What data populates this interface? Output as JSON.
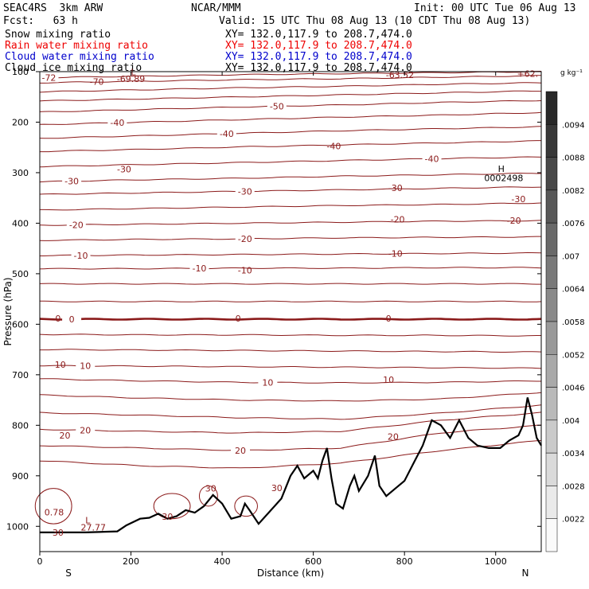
{
  "header": {
    "model": "SEAC4RS  3km ARW",
    "org": "NCAR/MMM",
    "init": "Init: 00 UTC Tue 06 Aug 13",
    "fcst": "Fcst:   63 h",
    "valid": "Valid: 15 UTC Thu 08 Aug 13 (10 CDT Thu 08 Aug 13)",
    "fields": [
      {
        "name": "Snow mixing ratio",
        "xy": "XY= 132.0,117.9 to 208.7,474.0",
        "color": "#000000"
      },
      {
        "name": "Rain water mixing ratio",
        "xy": "XY= 132.0,117.9 to 208.7,474.0",
        "color": "#ff0000"
      },
      {
        "name": "Cloud water mixing ratio",
        "xy": "XY= 132.0,117.9 to 208.7,474.0",
        "color": "#0000cc"
      },
      {
        "name": "Cloud ice mixing ratio",
        "xy": "XY= 132.0,117.9 to 208.7,474.0",
        "color": "#000000"
      }
    ]
  },
  "chart_data": {
    "type": "contour",
    "xlabel": "Distance (km)",
    "ylabel": "Pressure (hPa)",
    "xlim": [
      0,
      1100
    ],
    "ylim": [
      1050,
      100
    ],
    "x_ticks": [
      0,
      200,
      400,
      600,
      800,
      1000
    ],
    "y_ticks": [
      100,
      200,
      300,
      400,
      500,
      600,
      700,
      800,
      900,
      1000
    ],
    "x_end_labels": {
      "left": "S",
      "right": "N"
    },
    "contour_color": "#8b1a1a",
    "isotherm_levels": [
      {
        "p": [
          112,
          109,
          106,
          104,
          102,
          100
        ],
        "label": "-72",
        "lx": 20
      },
      {
        "p": [
          122,
          119,
          116,
          114,
          111,
          108
        ]
      },
      {
        "p": [
          140,
          136,
          132,
          129,
          125,
          122
        ]
      },
      {
        "p": [
          158,
          154,
          150,
          146,
          142,
          138
        ]
      },
      {
        "p": [
          180,
          175,
          170,
          166,
          161,
          157
        ],
        "label": "-50",
        "lx": 520
      },
      {
        "p": [
          205,
          200,
          195,
          190,
          186,
          181
        ],
        "label": "-40",
        "lx": 170
      },
      {
        "p": [
          232,
          227,
          222,
          217,
          213,
          209
        ],
        "label": "-40",
        "lx": 410
      },
      {
        "p": [
          258,
          254,
          249,
          245,
          241,
          237
        ]
      },
      {
        "p": [
          288,
          284,
          280,
          276,
          272,
          269
        ],
        "label": "-40",
        "lx": 860
      },
      {
        "p": [
          318,
          314,
          311,
          307,
          304,
          301
        ],
        "label": "-30",
        "lx": 70
      },
      {
        "p": [
          343,
          340,
          337,
          334,
          331,
          328
        ],
        "label": "-30",
        "lx": 450
      },
      {
        "p": [
          374,
          371,
          368,
          365,
          363,
          360
        ]
      },
      {
        "p": [
          404,
          402,
          400,
          398,
          396,
          395
        ],
        "label": "-20",
        "lx": 80
      },
      {
        "p": [
          434,
          432,
          431,
          429,
          428,
          427
        ],
        "label": "-20",
        "lx": 450
      },
      {
        "p": [
          464,
          463,
          462,
          461,
          460,
          459
        ],
        "label": "-10",
        "lx": 90
      },
      {
        "p": [
          490,
          490,
          489,
          489,
          488,
          488
        ],
        "label": "-10",
        "lx": 350
      },
      {
        "p": [
          520,
          520,
          520,
          520,
          520,
          520
        ]
      },
      {
        "p": [
          555,
          555,
          555,
          555,
          555,
          555
        ]
      },
      {
        "p": [
          590,
          590,
          590,
          590,
          590,
          590
        ],
        "label": "0",
        "lx": 70,
        "bold": true
      },
      {
        "p": [
          620,
          621,
          621,
          622,
          622,
          623
        ]
      },
      {
        "p": [
          650,
          651,
          652,
          653,
          654,
          655
        ]
      },
      {
        "p": [
          682,
          683,
          684,
          685,
          686,
          687
        ],
        "label": "10",
        "lx": 100
      },
      {
        "p": [
          708,
          712,
          715,
          716,
          715,
          712
        ],
        "label": "10",
        "lx": 500
      },
      {
        "p": [
          740,
          746,
          750,
          752,
          748,
          735
        ]
      },
      {
        "p": [
          775,
          780,
          785,
          788,
          776,
          760
        ]
      },
      {
        "p": [
          808,
          812,
          815,
          812,
          790,
          775
        ],
        "label": "20",
        "lx": 100
      },
      {
        "p": [
          840,
          845,
          850,
          845,
          815,
          800
        ],
        "label": "20",
        "lx": 440
      },
      {
        "p": [
          870,
          880,
          885,
          875,
          850,
          830
        ]
      }
    ],
    "inline_labels": [
      {
        "text": "-70",
        "x": 125,
        "p": 120
      },
      {
        "text": "-69.89",
        "x": 200,
        "p": 114
      },
      {
        "text": "L",
        "x": 205,
        "p": 101
      },
      {
        "text": "-63.52",
        "x": 790,
        "p": 106
      },
      {
        "text": "+62.",
        "x": 1070,
        "p": 104
      },
      {
        "text": "-30",
        "x": 1050,
        "p": 352
      },
      {
        "text": "-20",
        "x": 1040,
        "p": 395
      },
      {
        "text": "-20",
        "x": 785,
        "p": 392
      },
      {
        "text": "-10",
        "x": 780,
        "p": 460
      },
      {
        "text": "-30",
        "x": 780,
        "p": 330
      },
      {
        "text": "-40",
        "x": 645,
        "p": 247
      },
      {
        "text": "-30",
        "x": 185,
        "p": 293
      },
      {
        "text": "-10",
        "x": 450,
        "p": 493
      },
      {
        "text": "0",
        "x": 40,
        "p": 588
      },
      {
        "text": "0",
        "x": 435,
        "p": 588
      },
      {
        "text": "0",
        "x": 765,
        "p": 588
      },
      {
        "text": "10",
        "x": 45,
        "p": 680
      },
      {
        "text": "10",
        "x": 765,
        "p": 710
      },
      {
        "text": "20",
        "x": 55,
        "p": 820
      },
      {
        "text": "20",
        "x": 775,
        "p": 822
      },
      {
        "text": "30",
        "x": 375,
        "p": 925
      },
      {
        "text": "30",
        "x": 520,
        "p": 924
      },
      {
        "text": "30",
        "x": 280,
        "p": 981
      },
      {
        "text": "30",
        "x": 40,
        "p": 1012
      }
    ],
    "extrema": [
      {
        "text": "H",
        "x": 1005,
        "p": 292
      },
      {
        "text": "0002498",
        "x": 975,
        "p": 310
      },
      {
        "text": "L",
        "x": 100,
        "p": 988
      },
      {
        "text": "27.77",
        "x": 90,
        "p": 1002
      },
      {
        "text": "0.78",
        "x": 10,
        "p": 972
      }
    ],
    "terrain": [
      [
        0,
        1012
      ],
      [
        100,
        1012
      ],
      [
        170,
        1010
      ],
      [
        190,
        998
      ],
      [
        220,
        985
      ],
      [
        240,
        983
      ],
      [
        260,
        975
      ],
      [
        280,
        985
      ],
      [
        300,
        980
      ],
      [
        320,
        968
      ],
      [
        340,
        973
      ],
      [
        360,
        960
      ],
      [
        380,
        938
      ],
      [
        400,
        955
      ],
      [
        420,
        985
      ],
      [
        440,
        980
      ],
      [
        450,
        955
      ],
      [
        460,
        968
      ],
      [
        480,
        995
      ],
      [
        500,
        975
      ],
      [
        530,
        945
      ],
      [
        550,
        900
      ],
      [
        565,
        880
      ],
      [
        580,
        905
      ],
      [
        600,
        890
      ],
      [
        610,
        905
      ],
      [
        620,
        870
      ],
      [
        630,
        845
      ],
      [
        640,
        905
      ],
      [
        650,
        955
      ],
      [
        665,
        965
      ],
      [
        680,
        920
      ],
      [
        690,
        900
      ],
      [
        700,
        930
      ],
      [
        720,
        900
      ],
      [
        735,
        860
      ],
      [
        745,
        920
      ],
      [
        760,
        940
      ],
      [
        780,
        925
      ],
      [
        800,
        910
      ],
      [
        820,
        875
      ],
      [
        840,
        840
      ],
      [
        860,
        790
      ],
      [
        880,
        800
      ],
      [
        900,
        825
      ],
      [
        920,
        790
      ],
      [
        940,
        825
      ],
      [
        960,
        840
      ],
      [
        985,
        845
      ],
      [
        1010,
        845
      ],
      [
        1030,
        830
      ],
      [
        1050,
        820
      ],
      [
        1060,
        800
      ],
      [
        1070,
        745
      ],
      [
        1080,
        780
      ],
      [
        1090,
        825
      ],
      [
        1100,
        840
      ]
    ],
    "colorbar": {
      "unit": "g kg⁻¹",
      "labels": [
        ".0094",
        ".0088",
        ".0082",
        ".0076",
        ".007",
        ".0064",
        ".0058",
        ".0052",
        ".0046",
        ".004",
        ".0034",
        ".0028",
        ".0022"
      ]
    }
  }
}
